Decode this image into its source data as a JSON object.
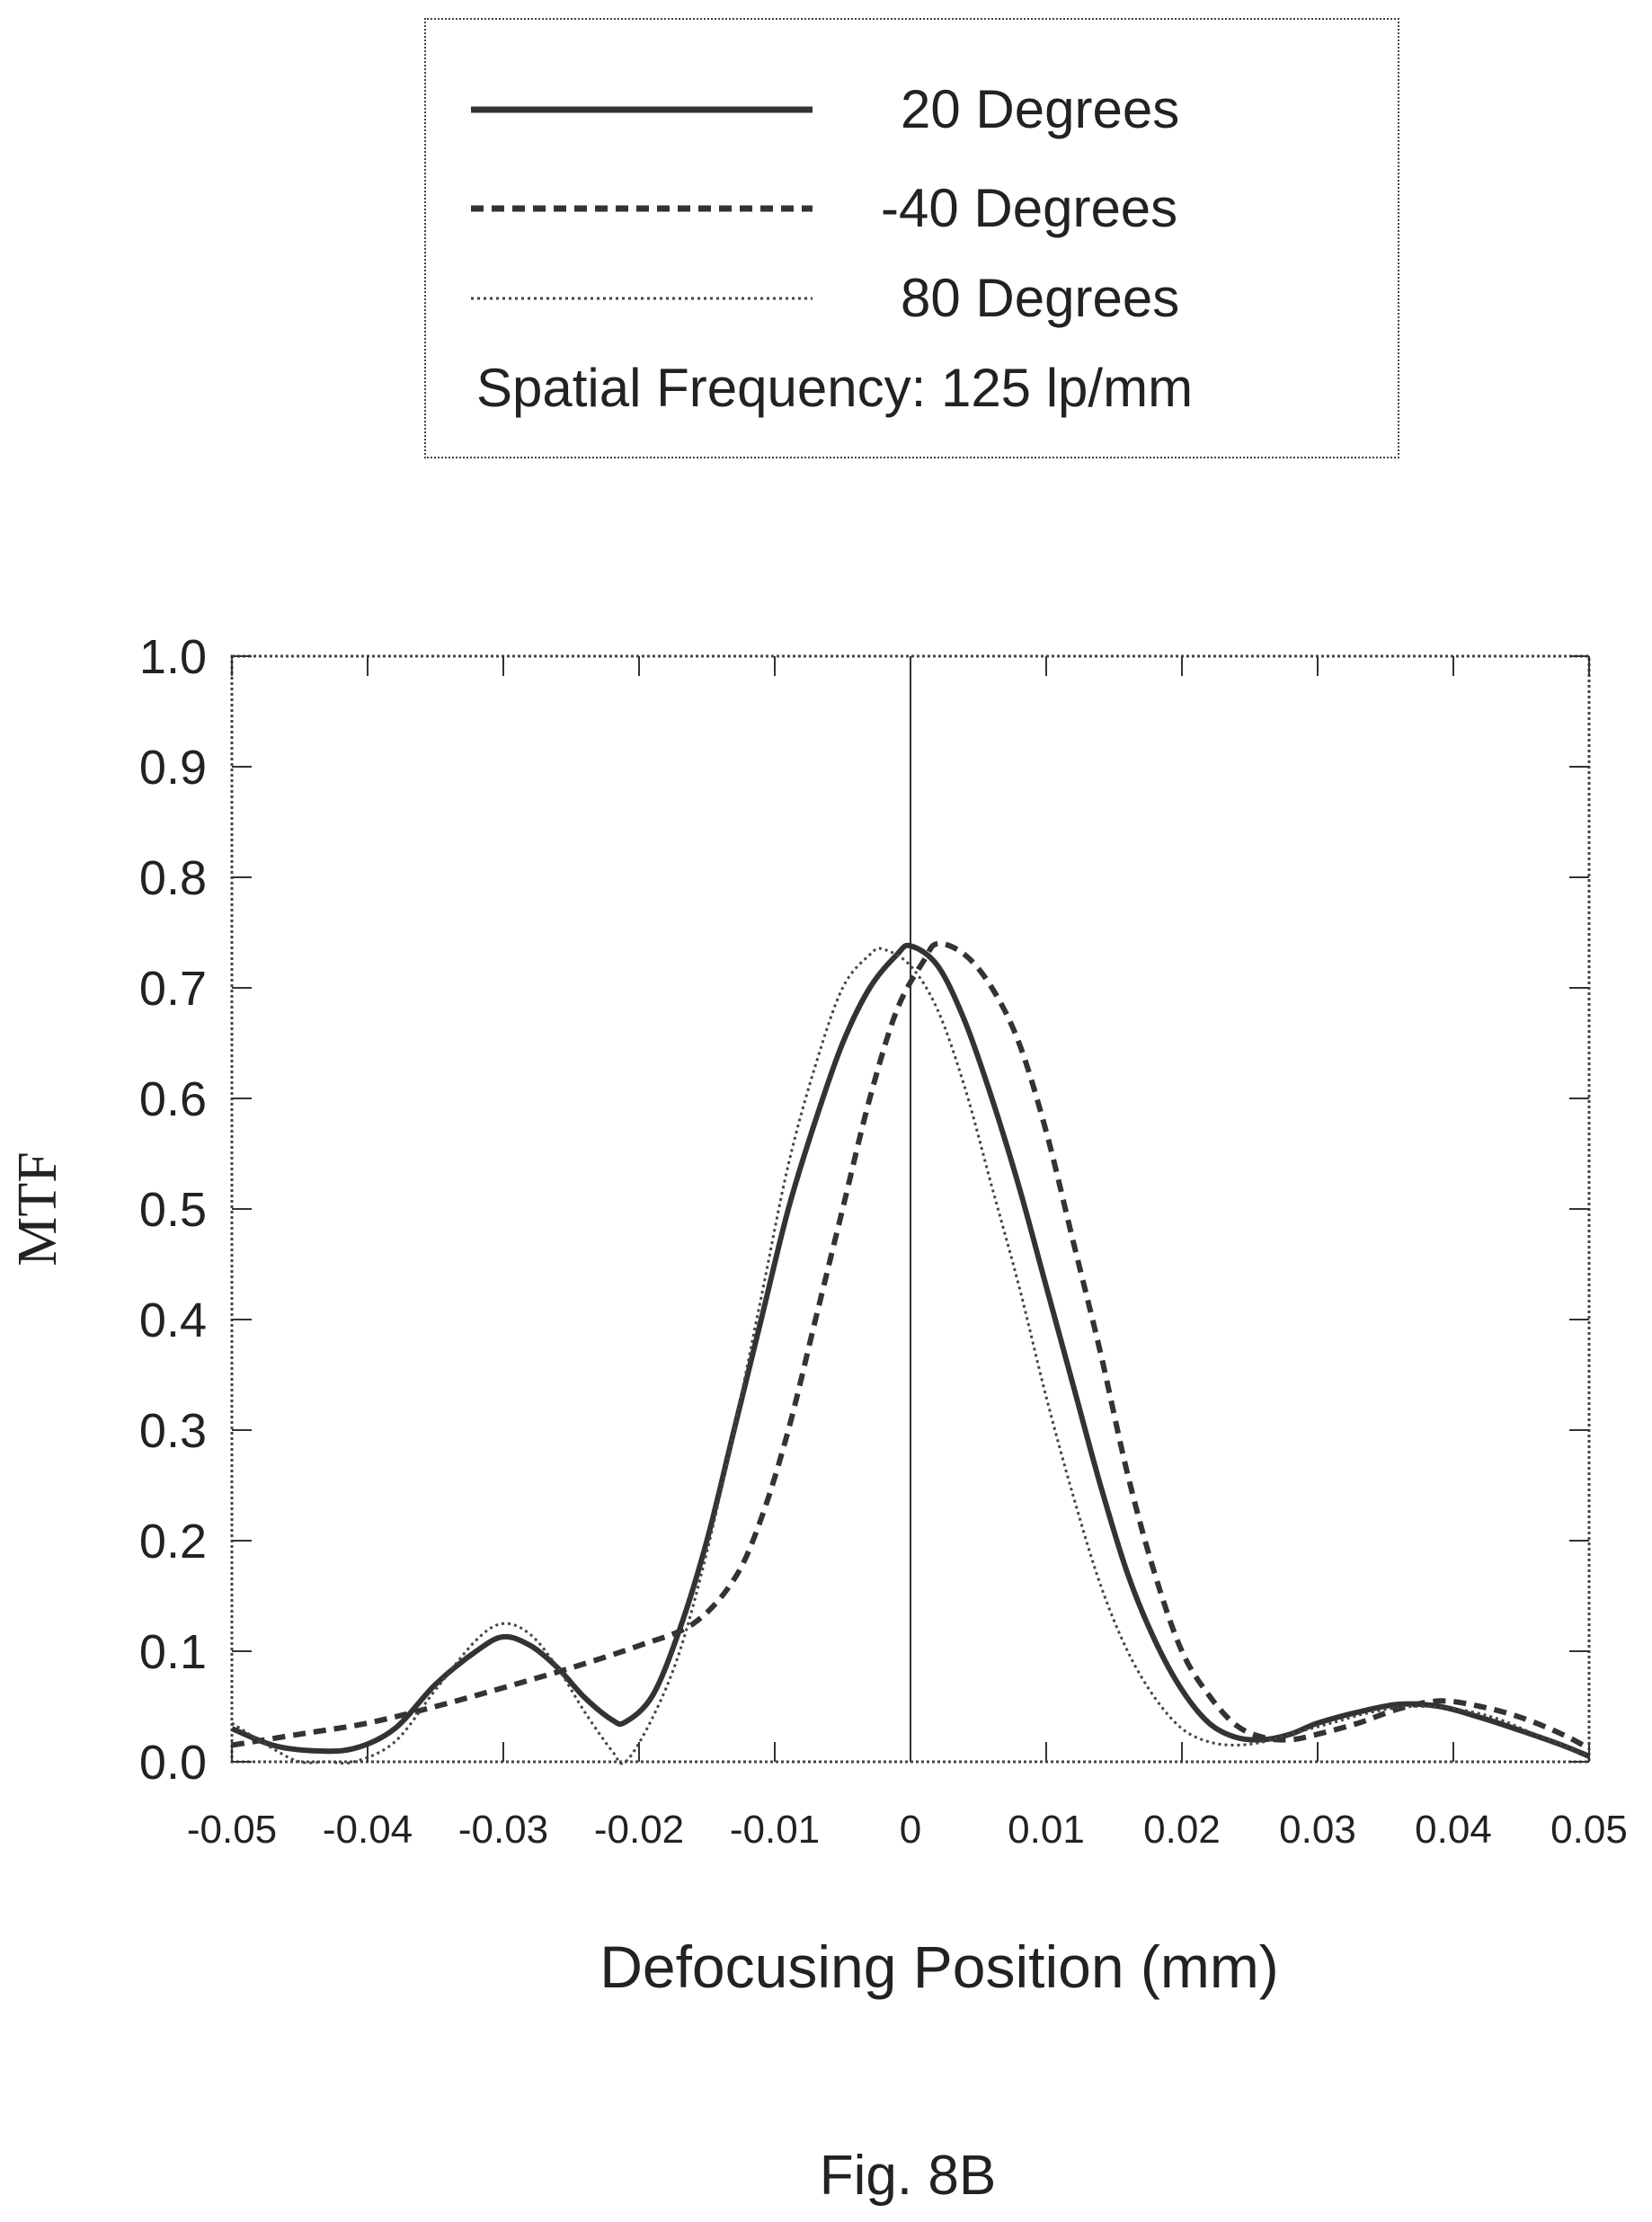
{
  "legend": {
    "entries": [
      {
        "label": "20 Degrees",
        "style": "solid"
      },
      {
        "label": "-40 Degrees",
        "style": "dashed"
      },
      {
        "label": "80 Degrees",
        "style": "dotted"
      }
    ],
    "note": "Spatial Frequency:  125 lp/mm"
  },
  "caption": "Fig. 8B",
  "chart_data": {
    "type": "line",
    "xlabel": "Defocusing Position (mm)",
    "ylabel": "MTF",
    "xlim": [
      -0.05,
      0.05
    ],
    "ylim": [
      0.0,
      1.0
    ],
    "xticks": [
      "-0.05",
      "-0.04",
      "-0.03",
      "-0.02",
      "-0.01",
      "0",
      "0.01",
      "0.02",
      "0.03",
      "0.04",
      "0.05"
    ],
    "yticks": [
      "0.0",
      "0.1",
      "0.2",
      "0.3",
      "0.4",
      "0.5",
      "0.6",
      "0.7",
      "0.8",
      "0.9",
      "1.0"
    ],
    "grid": false,
    "legend_position": "top",
    "series": [
      {
        "name": "20 Degrees",
        "style": "solid",
        "x": [
          -0.05,
          -0.047,
          -0.044,
          -0.041,
          -0.038,
          -0.035,
          -0.032,
          -0.03,
          -0.028,
          -0.026,
          -0.024,
          -0.022,
          -0.021,
          -0.019,
          -0.017,
          -0.015,
          -0.013,
          -0.011,
          -0.009,
          -0.007,
          -0.005,
          -0.003,
          -0.001,
          0.0,
          0.002,
          0.004,
          0.006,
          0.008,
          0.01,
          0.012,
          0.014,
          0.016,
          0.018,
          0.02,
          0.022,
          0.024,
          0.026,
          0.028,
          0.03,
          0.033,
          0.036,
          0.039,
          0.042,
          0.045,
          0.048,
          0.05
        ],
        "y": [
          0.03,
          0.015,
          0.01,
          0.012,
          0.03,
          0.07,
          0.1,
          0.113,
          0.105,
          0.085,
          0.058,
          0.038,
          0.036,
          0.06,
          0.12,
          0.2,
          0.3,
          0.4,
          0.5,
          0.58,
          0.65,
          0.7,
          0.73,
          0.738,
          0.72,
          0.67,
          0.6,
          0.52,
          0.43,
          0.34,
          0.25,
          0.17,
          0.11,
          0.065,
          0.035,
          0.022,
          0.02,
          0.025,
          0.035,
          0.045,
          0.052,
          0.05,
          0.04,
          0.028,
          0.015,
          0.005
        ]
      },
      {
        "name": "-40 Degrees",
        "style": "dashed",
        "x": [
          -0.05,
          -0.045,
          -0.04,
          -0.035,
          -0.03,
          -0.025,
          -0.02,
          -0.016,
          -0.013,
          -0.011,
          -0.009,
          -0.007,
          -0.005,
          -0.003,
          -0.001,
          0.001,
          0.002,
          0.004,
          0.006,
          0.008,
          0.01,
          0.012,
          0.014,
          0.016,
          0.018,
          0.02,
          0.022,
          0.024,
          0.026,
          0.028,
          0.03,
          0.033,
          0.036,
          0.039,
          0.042,
          0.045,
          0.048,
          0.05
        ],
        "y": [
          0.015,
          0.025,
          0.035,
          0.05,
          0.067,
          0.085,
          0.105,
          0.125,
          0.165,
          0.22,
          0.3,
          0.4,
          0.5,
          0.6,
          0.68,
          0.725,
          0.74,
          0.73,
          0.7,
          0.65,
          0.57,
          0.47,
          0.37,
          0.26,
          0.17,
          0.1,
          0.06,
          0.033,
          0.022,
          0.02,
          0.025,
          0.035,
          0.048,
          0.055,
          0.05,
          0.04,
          0.025,
          0.012
        ]
      },
      {
        "name": "80 Degrees",
        "style": "dotted",
        "x": [
          -0.05,
          -0.047,
          -0.045,
          -0.043,
          -0.041,
          -0.038,
          -0.035,
          -0.032,
          -0.03,
          -0.028,
          -0.026,
          -0.024,
          -0.022,
          -0.021,
          -0.019,
          -0.017,
          -0.015,
          -0.013,
          -0.011,
          -0.009,
          -0.007,
          -0.005,
          -0.003,
          -0.002,
          0.0,
          0.002,
          0.004,
          0.006,
          0.008,
          0.01,
          0.012,
          0.014,
          0.016,
          0.018,
          0.02,
          0.022,
          0.024,
          0.026,
          0.028,
          0.031,
          0.034,
          0.037,
          0.04,
          0.043,
          0.046,
          0.049,
          0.05
        ],
        "y": [
          0.035,
          0.012,
          0.0,
          0.0,
          0.0,
          0.018,
          0.065,
          0.11,
          0.125,
          0.115,
          0.085,
          0.045,
          0.01,
          0.0,
          0.04,
          0.1,
          0.19,
          0.3,
          0.42,
          0.54,
          0.63,
          0.7,
          0.73,
          0.735,
          0.72,
          0.68,
          0.61,
          0.52,
          0.43,
          0.33,
          0.24,
          0.16,
          0.1,
          0.058,
          0.03,
          0.018,
          0.015,
          0.018,
          0.025,
          0.035,
          0.045,
          0.05,
          0.048,
          0.04,
          0.025,
          0.01,
          0.005
        ]
      }
    ]
  }
}
